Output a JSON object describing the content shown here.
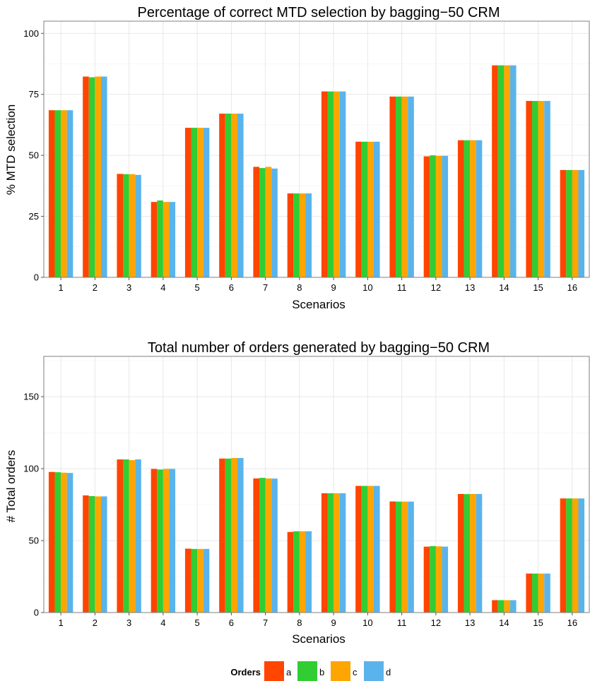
{
  "colors": {
    "a": "#FF4500",
    "b": "#32CD32",
    "c": "#FFA500",
    "d": "#5AB4EB"
  },
  "chart_data": [
    {
      "type": "bar",
      "title": "Percentage of correct MTD selection by bagging−50 CRM",
      "xlabel": "Scenarios",
      "ylabel": "% MTD selection",
      "ylim": [
        0,
        105
      ],
      "yticks": [
        "0",
        "25",
        "50",
        "75",
        "100"
      ],
      "categories": [
        "1",
        "2",
        "3",
        "4",
        "5",
        "6",
        "7",
        "8",
        "9",
        "10",
        "11",
        "12",
        "13",
        "14",
        "15",
        "16"
      ],
      "series": [
        {
          "name": "a",
          "values": [
            68.5,
            82.3,
            42.4,
            30.9,
            61.3,
            67.1,
            45.3,
            34.4,
            76.2,
            55.6,
            74.1,
            49.6,
            56.2,
            86.9,
            72.3,
            44.0
          ]
        },
        {
          "name": "b",
          "values": [
            68.5,
            82.0,
            42.3,
            31.5,
            61.3,
            67.1,
            44.8,
            34.4,
            76.2,
            55.6,
            74.1,
            50.0,
            56.2,
            86.9,
            72.3,
            44.0
          ]
        },
        {
          "name": "c",
          "values": [
            68.5,
            82.3,
            42.3,
            30.9,
            61.3,
            67.1,
            45.3,
            34.4,
            76.2,
            55.6,
            74.1,
            49.8,
            56.2,
            86.9,
            72.3,
            44.0
          ]
        },
        {
          "name": "d",
          "values": [
            68.5,
            82.3,
            42.0,
            30.9,
            61.3,
            67.1,
            44.6,
            34.4,
            76.2,
            55.6,
            74.1,
            49.8,
            56.2,
            86.9,
            72.3,
            44.0
          ]
        }
      ]
    },
    {
      "type": "bar",
      "title": "Total number of orders generated by bagging−50 CRM",
      "xlabel": "Scenarios",
      "ylabel": "# Total orders",
      "ylim": [
        0,
        178
      ],
      "yticks": [
        "0",
        "50",
        "100",
        "150"
      ],
      "categories": [
        "1",
        "2",
        "3",
        "4",
        "5",
        "6",
        "7",
        "8",
        "9",
        "10",
        "11",
        "12",
        "13",
        "14",
        "15",
        "16"
      ],
      "series": [
        {
          "name": "a",
          "values": [
            97.7,
            81.4,
            106.4,
            99.8,
            44.4,
            107.0,
            93.2,
            56.0,
            82.9,
            88.0,
            77.2,
            45.8,
            82.4,
            8.6,
            27.1,
            79.3
          ]
        },
        {
          "name": "b",
          "values": [
            97.5,
            80.9,
            106.4,
            99.4,
            44.2,
            107.0,
            93.6,
            56.5,
            82.9,
            88.0,
            77.1,
            46.2,
            82.3,
            8.6,
            27.1,
            79.3
          ]
        },
        {
          "name": "c",
          "values": [
            97.2,
            80.7,
            105.9,
            99.8,
            44.2,
            107.4,
            93.2,
            56.5,
            82.9,
            88.0,
            77.1,
            46.0,
            82.4,
            8.6,
            27.1,
            79.3
          ]
        },
        {
          "name": "d",
          "values": [
            97.0,
            80.7,
            106.4,
            99.8,
            44.2,
            107.4,
            93.1,
            56.5,
            82.9,
            88.0,
            77.1,
            45.8,
            82.4,
            8.6,
            27.1,
            79.3
          ]
        }
      ]
    }
  ],
  "legend": {
    "title": "Orders",
    "items": [
      "a",
      "b",
      "c",
      "d"
    ]
  }
}
